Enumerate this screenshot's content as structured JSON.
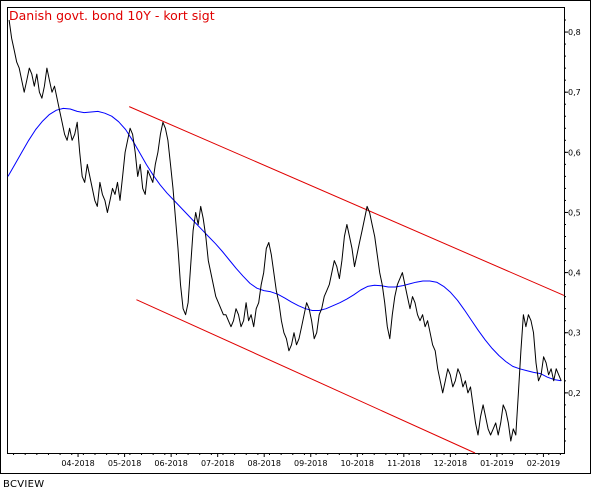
{
  "chart_data": {
    "type": "line",
    "title": "Danish govt. bond 10Y - kort sigt",
    "brand": "BCVIEW",
    "colors": {
      "price": "#000000",
      "moving_average": "#0000ff",
      "channel": "#e00000",
      "title": "#e00000",
      "frame": "#000000"
    },
    "ylim": [
      0.1,
      0.84
    ],
    "y_ticks": [
      "0,8",
      "0,7",
      "0,6",
      "0,5",
      "0,4",
      "0,3",
      "0,2"
    ],
    "y_tick_values": [
      0.8,
      0.7,
      0.6,
      0.5,
      0.4,
      0.3,
      0.2
    ],
    "x_tick_labels": [
      "04-2018",
      "05-2018",
      "06-2018",
      "07-2018",
      "08-2018",
      "09-2018",
      "10-2018",
      "11-2018",
      "12-2018",
      "01-2019",
      "02-2019"
    ],
    "grid": false,
    "series": [
      {
        "kind": "price",
        "values": [
          0.82,
          0.79,
          0.77,
          0.75,
          0.74,
          0.72,
          0.7,
          0.72,
          0.74,
          0.73,
          0.71,
          0.73,
          0.7,
          0.69,
          0.71,
          0.74,
          0.72,
          0.7,
          0.71,
          0.69,
          0.67,
          0.65,
          0.63,
          0.62,
          0.64,
          0.62,
          0.63,
          0.65,
          0.6,
          0.56,
          0.55,
          0.58,
          0.56,
          0.54,
          0.52,
          0.51,
          0.55,
          0.53,
          0.52,
          0.5,
          0.52,
          0.54,
          0.53,
          0.55,
          0.52,
          0.56,
          0.6,
          0.62,
          0.64,
          0.63,
          0.6,
          0.56,
          0.58,
          0.54,
          0.53,
          0.57,
          0.56,
          0.55,
          0.58,
          0.6,
          0.63,
          0.65,
          0.64,
          0.62,
          0.58,
          0.54,
          0.49,
          0.44,
          0.38,
          0.34,
          0.33,
          0.35,
          0.41,
          0.47,
          0.5,
          0.48,
          0.51,
          0.49,
          0.46,
          0.42,
          0.4,
          0.38,
          0.36,
          0.35,
          0.34,
          0.33,
          0.33,
          0.32,
          0.31,
          0.32,
          0.34,
          0.33,
          0.31,
          0.32,
          0.35,
          0.32,
          0.33,
          0.31,
          0.34,
          0.35,
          0.38,
          0.4,
          0.44,
          0.45,
          0.43,
          0.4,
          0.37,
          0.35,
          0.32,
          0.3,
          0.29,
          0.27,
          0.28,
          0.3,
          0.28,
          0.29,
          0.31,
          0.33,
          0.35,
          0.34,
          0.32,
          0.29,
          0.3,
          0.33,
          0.34,
          0.36,
          0.37,
          0.38,
          0.4,
          0.42,
          0.41,
          0.39,
          0.42,
          0.46,
          0.48,
          0.46,
          0.44,
          0.41,
          0.43,
          0.45,
          0.47,
          0.49,
          0.51,
          0.5,
          0.48,
          0.46,
          0.43,
          0.4,
          0.38,
          0.35,
          0.31,
          0.29,
          0.33,
          0.36,
          0.38,
          0.39,
          0.4,
          0.38,
          0.36,
          0.34,
          0.36,
          0.35,
          0.33,
          0.32,
          0.33,
          0.31,
          0.32,
          0.3,
          0.28,
          0.27,
          0.24,
          0.22,
          0.2,
          0.22,
          0.24,
          0.23,
          0.21,
          0.22,
          0.24,
          0.23,
          0.21,
          0.22,
          0.2,
          0.21,
          0.18,
          0.15,
          0.13,
          0.16,
          0.18,
          0.16,
          0.14,
          0.13,
          0.14,
          0.15,
          0.13,
          0.15,
          0.18,
          0.17,
          0.15,
          0.12,
          0.14,
          0.13,
          0.2,
          0.27,
          0.33,
          0.31,
          0.33,
          0.32,
          0.3,
          0.25,
          0.22,
          0.23,
          0.26,
          0.25,
          0.23,
          0.24,
          0.22,
          0.24,
          0.23,
          0.22
        ]
      },
      {
        "kind": "moving_average",
        "values": [
          0.56,
          0.58,
          0.6,
          0.62,
          0.638,
          0.652,
          0.663,
          0.67,
          0.673,
          0.672,
          0.668,
          0.666,
          0.667,
          0.668,
          0.665,
          0.66,
          0.651,
          0.638,
          0.62,
          0.6,
          0.58,
          0.562,
          0.546,
          0.532,
          0.52,
          0.508,
          0.496,
          0.484,
          0.472,
          0.46,
          0.448,
          0.435,
          0.421,
          0.407,
          0.394,
          0.382,
          0.374,
          0.37,
          0.368,
          0.364,
          0.358,
          0.351,
          0.345,
          0.34,
          0.337,
          0.337,
          0.34,
          0.345,
          0.35,
          0.356,
          0.363,
          0.371,
          0.377,
          0.379,
          0.378,
          0.376,
          0.376,
          0.378,
          0.381,
          0.384,
          0.386,
          0.386,
          0.384,
          0.377,
          0.367,
          0.354,
          0.338,
          0.321,
          0.304,
          0.288,
          0.274,
          0.262,
          0.252,
          0.244,
          0.24,
          0.237,
          0.234,
          0.232,
          0.226,
          0.222,
          0.22
        ]
      }
    ],
    "channel_lines": [
      {
        "name": "upper",
        "start": [
          0.218,
          0.676
        ],
        "end": [
          1.0,
          0.362
        ]
      },
      {
        "name": "lower",
        "start": [
          0.231,
          0.355
        ],
        "end": [
          0.84,
          0.1
        ]
      }
    ]
  }
}
